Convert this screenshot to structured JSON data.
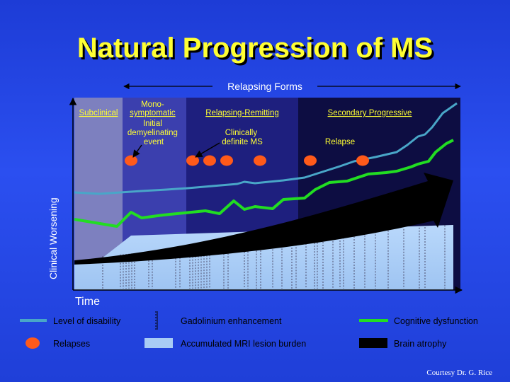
{
  "title": "Natural Progression of MS",
  "relapsing_forms_label": "Relapsing Forms",
  "y_axis_label": "Clinical Worsening",
  "x_axis_label": "Time",
  "phases": [
    {
      "label": "Subclinical"
    },
    {
      "label_lines": [
        "Mono-",
        "symptomatic",
        "Initial",
        "demyelinating",
        "event"
      ]
    },
    {
      "label": "Relapsing-Remitting"
    },
    {
      "label": "Secondary Progressive"
    }
  ],
  "annotations": {
    "clinically_definite": [
      "Clinically",
      "definite MS"
    ],
    "relapse": "Relapse"
  },
  "legend": {
    "level_of_disability": "Level of disability",
    "gadolinium": "Gadolinium enhancement",
    "cognitive": "Cognitive dysfunction",
    "relapses": "Relapses",
    "mri_burden": "Accumulated MRI lesion burden",
    "brain_atrophy": "Brain atrophy"
  },
  "colors": {
    "title": "#ffff33",
    "disability_line": "#49a6c8",
    "cognitive_line": "#22dd22",
    "relapse_dot": "#ff5a1a",
    "mri_area": "#a8ccf5",
    "atrophy": "#000000"
  },
  "credit": "Courtesy Dr. G. Rice"
}
